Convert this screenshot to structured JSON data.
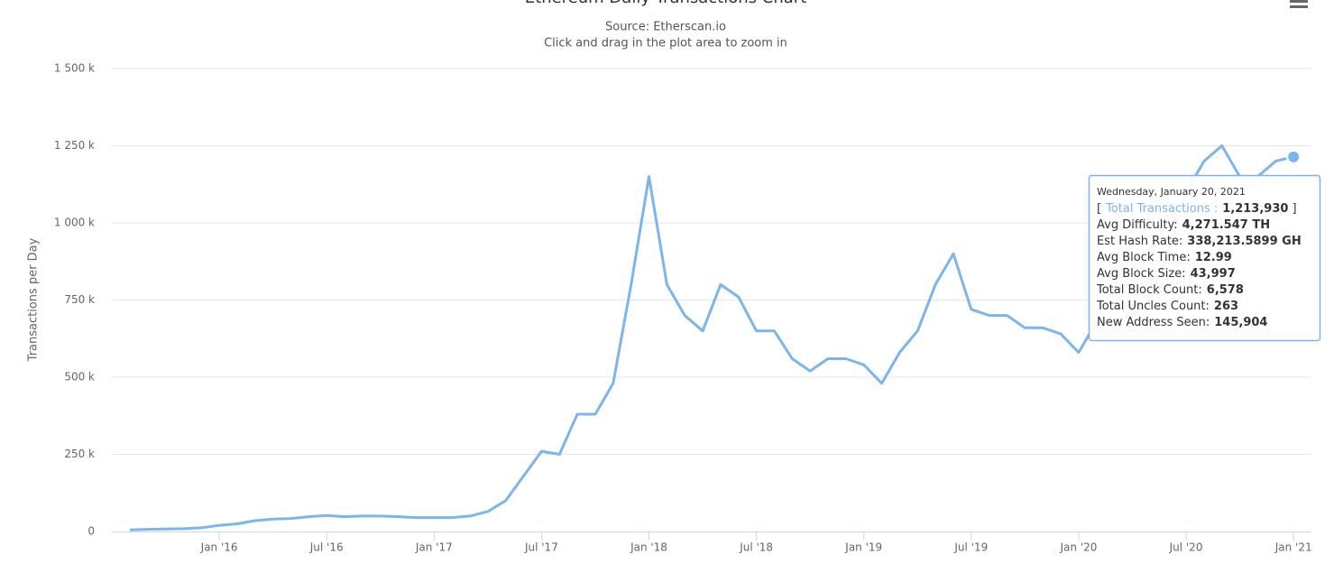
{
  "chart_data": {
    "type": "line",
    "title": "Ethereum Daily Transactions Chart",
    "subtitle": [
      "Source: Etherscan.io",
      "Click and drag in the plot area to zoom in"
    ],
    "y_label": "Transactions per Day",
    "grid": true,
    "ylim": [
      0,
      1500000
    ],
    "yticks": [
      0,
      {
        "value": 250000,
        "label": "250 k"
      },
      {
        "value": 500000,
        "label": "500 k"
      },
      {
        "value": 750000,
        "label": "750 k"
      },
      {
        "value": 1000000,
        "label": "1 000 k"
      },
      {
        "value": 1250000,
        "label": "1 250 k"
      },
      {
        "value": 1500000,
        "label": "1 500 k"
      }
    ],
    "xlim": [
      "2015-07",
      "2021-02"
    ],
    "xticks": [
      {
        "value": "2016-01",
        "label": "Jan '16"
      },
      {
        "value": "2016-07",
        "label": "Jul '16"
      },
      {
        "value": "2017-01",
        "label": "Jan '17"
      },
      {
        "value": "2017-07",
        "label": "Jul '17"
      },
      {
        "value": "2018-01",
        "label": "Jan '18"
      },
      {
        "value": "2018-07",
        "label": "Jul '18"
      },
      {
        "value": "2019-01",
        "label": "Jan '19"
      },
      {
        "value": "2019-07",
        "label": "Jul '19"
      },
      {
        "value": "2020-01",
        "label": "Jan '20"
      },
      {
        "value": "2020-07",
        "label": "Jul '20"
      },
      {
        "value": "2021-01",
        "label": "Jan '21"
      }
    ],
    "x": [
      "2015-08",
      "2015-09",
      "2015-10",
      "2015-11",
      "2015-12",
      "2016-01",
      "2016-02",
      "2016-03",
      "2016-04",
      "2016-05",
      "2016-06",
      "2016-07",
      "2016-08",
      "2016-09",
      "2016-10",
      "2016-11",
      "2016-12",
      "2017-01",
      "2017-02",
      "2017-03",
      "2017-04",
      "2017-05",
      "2017-06",
      "2017-07",
      "2017-08",
      "2017-09",
      "2017-10",
      "2017-11",
      "2017-12",
      "2018-01",
      "2018-02",
      "2018-03",
      "2018-04",
      "2018-05",
      "2018-06",
      "2018-07",
      "2018-08",
      "2018-09",
      "2018-10",
      "2018-11",
      "2018-12",
      "2019-01",
      "2019-02",
      "2019-03",
      "2019-04",
      "2019-05",
      "2019-06",
      "2019-07",
      "2019-08",
      "2019-09",
      "2019-10",
      "2019-11",
      "2019-12",
      "2020-01",
      "2020-02",
      "2020-03",
      "2020-04",
      "2020-05",
      "2020-06",
      "2020-07",
      "2020-08",
      "2020-09",
      "2020-10",
      "2020-11",
      "2020-12",
      "2021-01"
    ],
    "series": [
      {
        "name": "Total Transactions",
        "color": "#7cb5ec",
        "values": [
          5000,
          7000,
          8000,
          9000,
          12000,
          20000,
          25000,
          35000,
          40000,
          42000,
          48000,
          52000,
          48000,
          50000,
          50000,
          48000,
          45000,
          45000,
          45000,
          50000,
          65000,
          100000,
          180000,
          260000,
          250000,
          380000,
          380000,
          480000,
          800000,
          1150000,
          800000,
          700000,
          650000,
          800000,
          760000,
          650000,
          650000,
          560000,
          520000,
          560000,
          560000,
          540000,
          480000,
          580000,
          650000,
          800000,
          900000,
          720000,
          700000,
          700000,
          660000,
          660000,
          640000,
          580000,
          680000,
          680000,
          700000,
          750000,
          900000,
          1100000,
          1200000,
          1250000,
          1150000,
          1150000,
          1200000,
          1213930
        ]
      }
    ],
    "tooltip": {
      "date": "Wednesday, January 20, 2021",
      "open": "[",
      "close": "]",
      "items": [
        {
          "label": "Total Transactions :",
          "value": "1,213,930"
        },
        {
          "label": "Avg Difficulty:",
          "value": "4,271.547 TH"
        },
        {
          "label": "Est Hash Rate:",
          "value": "338,213.5899 GH"
        },
        {
          "label": "Avg Block Time:",
          "value": "12.99"
        },
        {
          "label": "Avg Block Size:",
          "value": "43,997"
        },
        {
          "label": "Total Block Count:",
          "value": "6,578"
        },
        {
          "label": "Total Uncles Count:",
          "value": "263"
        },
        {
          "label": "New Address Seen:",
          "value": "145,904"
        }
      ]
    }
  }
}
